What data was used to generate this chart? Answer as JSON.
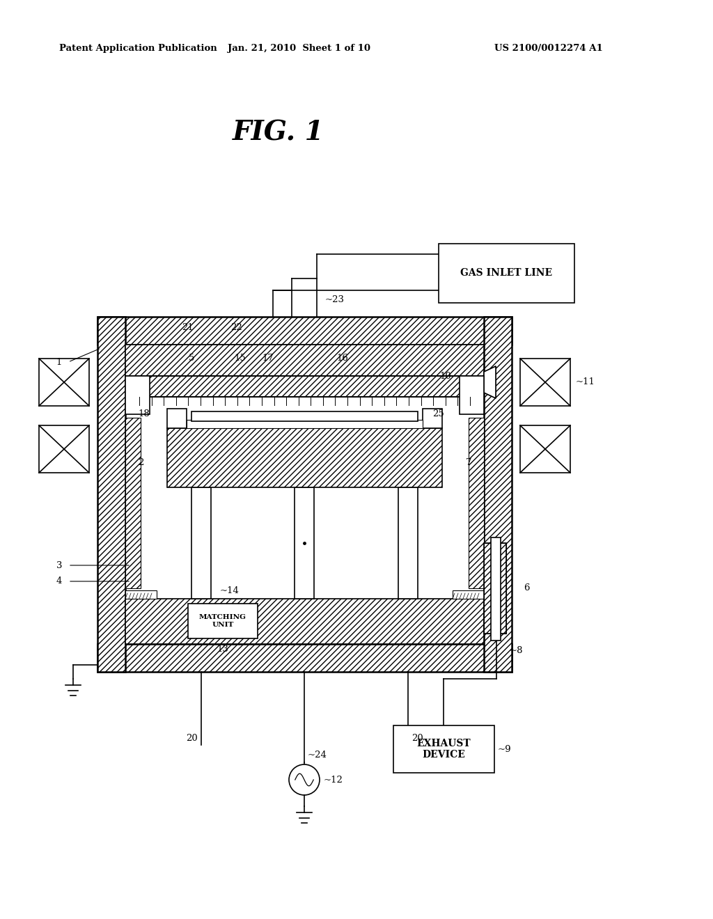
{
  "bg_color": "#ffffff",
  "header_left": "Patent Application Publication",
  "header_mid": "Jan. 21, 2010  Sheet 1 of 10",
  "header_right": "US 2100/0012274 A1",
  "fig_title": "FIG. 1",
  "gas_inlet_label": "GAS INLET LINE",
  "exhaust_label": "EXHAUST\nDEVICE",
  "matching_label": "MATCHING\nUNIT"
}
